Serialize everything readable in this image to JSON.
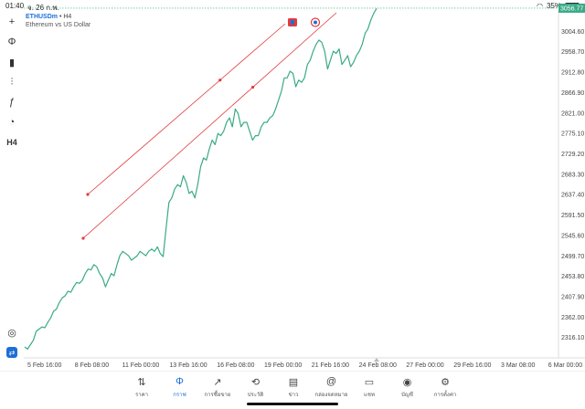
{
  "status": {
    "time": "01:40",
    "date": "จ. 26 ก.พ.",
    "battery": "35%"
  },
  "symbol": {
    "name": "ETHUSDm",
    "sep": "•",
    "timeframe": "H4",
    "description": "Ethereum vs US Dollar"
  },
  "toolbar": {
    "items": [
      {
        "name": "crosshair-icon",
        "glyph": "+"
      },
      {
        "name": "chart-type-icon",
        "glyph": "Φ"
      },
      {
        "name": "indicators-icon",
        "glyph": "▮"
      },
      {
        "name": "objects-icon",
        "glyph": "⫶"
      },
      {
        "name": "function-icon",
        "glyph": "ƒ"
      },
      {
        "name": "shapes-icon",
        "glyph": "◔"
      },
      {
        "name": "timeframe-button",
        "glyph": "H4"
      }
    ],
    "bottom": [
      {
        "name": "zoom-icon",
        "glyph": "◎"
      },
      {
        "name": "trade-icon",
        "glyph": "⇄"
      }
    ]
  },
  "chart_data": {
    "type": "line",
    "y_ticks": [
      "3004.60",
      "2958.70",
      "2912.80",
      "2866.90",
      "2821.00",
      "2775.10",
      "2729.20",
      "2683.30",
      "2637.40",
      "2591.50",
      "2545.60",
      "2499.70",
      "2453.80",
      "2407.90",
      "2362.00",
      "2316.10"
    ],
    "x_ticks": [
      "5 Feb 16:00",
      "8 Feb 08:00",
      "11 Feb 00:00",
      "13 Feb 16:00",
      "16 Feb 08:00",
      "19 Feb 00:00",
      "21 Feb 16:00",
      "24 Feb 08:00",
      "27 Feb 00:00",
      "29 Feb 16:00",
      "3 Mar 08:00",
      "6 Mar 00:00"
    ],
    "last_price": "3056.77",
    "series": [
      {
        "color": "#3aaa86",
        "values": [
          2295,
          2290,
          2300,
          2310,
          2330,
          2335,
          2340,
          2338,
          2350,
          2360,
          2375,
          2380,
          2395,
          2405,
          2410,
          2420,
          2418,
          2430,
          2440,
          2438,
          2445,
          2460,
          2470,
          2468,
          2480,
          2475,
          2460,
          2450,
          2430,
          2445,
          2460,
          2455,
          2480,
          2500,
          2510,
          2505,
          2500,
          2490,
          2495,
          2500,
          2510,
          2505,
          2500,
          2510,
          2515,
          2510,
          2520,
          2505,
          2498,
          2560,
          2620,
          2630,
          2650,
          2660,
          2655,
          2680,
          2665,
          2640,
          2645,
          2630,
          2660,
          2700,
          2720,
          2715,
          2740,
          2760,
          2750,
          2775,
          2770,
          2780,
          2800,
          2810,
          2790,
          2830,
          2820,
          2790,
          2800,
          2800,
          2780,
          2760,
          2770,
          2770,
          2790,
          2800,
          2800,
          2810,
          2815,
          2830,
          2850,
          2870,
          2900,
          2900,
          2915,
          2910,
          2880,
          2895,
          2890,
          2900,
          2930,
          2940,
          2960,
          2975,
          2985,
          2980,
          2960,
          2920,
          2940,
          2960,
          2955,
          2965,
          2930,
          2940,
          2950,
          2925,
          2935,
          2950,
          2960,
          2975,
          3000,
          3010,
          3030,
          3045,
          3056
        ]
      }
    ],
    "trendlines": [
      {
        "color": "#e23b3b",
        "from": [
          96,
          213
        ],
        "to": [
          312,
          26
        ]
      },
      {
        "color": "#e23b3b",
        "from": [
          91,
          261
        ],
        "to": [
          368,
          14
        ]
      }
    ]
  },
  "tabs": [
    {
      "name": "tab-quotes",
      "icon": "⇅",
      "label": "ราคา",
      "active": false
    },
    {
      "name": "tab-chart",
      "icon": "Φ",
      "label": "กราฟ",
      "active": true
    },
    {
      "name": "tab-trade",
      "icon": "↗",
      "label": "การซื้อขาย",
      "active": false
    },
    {
      "name": "tab-history",
      "icon": "⟲",
      "label": "ประวัติ",
      "active": false
    },
    {
      "name": "tab-news",
      "icon": "▤",
      "label": "ข่าว",
      "active": false
    },
    {
      "name": "tab-mailbox",
      "icon": "@",
      "label": "กล่องจดหมาย",
      "active": false
    },
    {
      "name": "tab-chat",
      "icon": "▭",
      "label": "แชท",
      "active": false
    },
    {
      "name": "tab-account",
      "icon": "◉",
      "label": "บัญชี",
      "active": false
    },
    {
      "name": "tab-settings",
      "icon": "⚙",
      "label": "การตั้งค่า",
      "active": false
    }
  ]
}
